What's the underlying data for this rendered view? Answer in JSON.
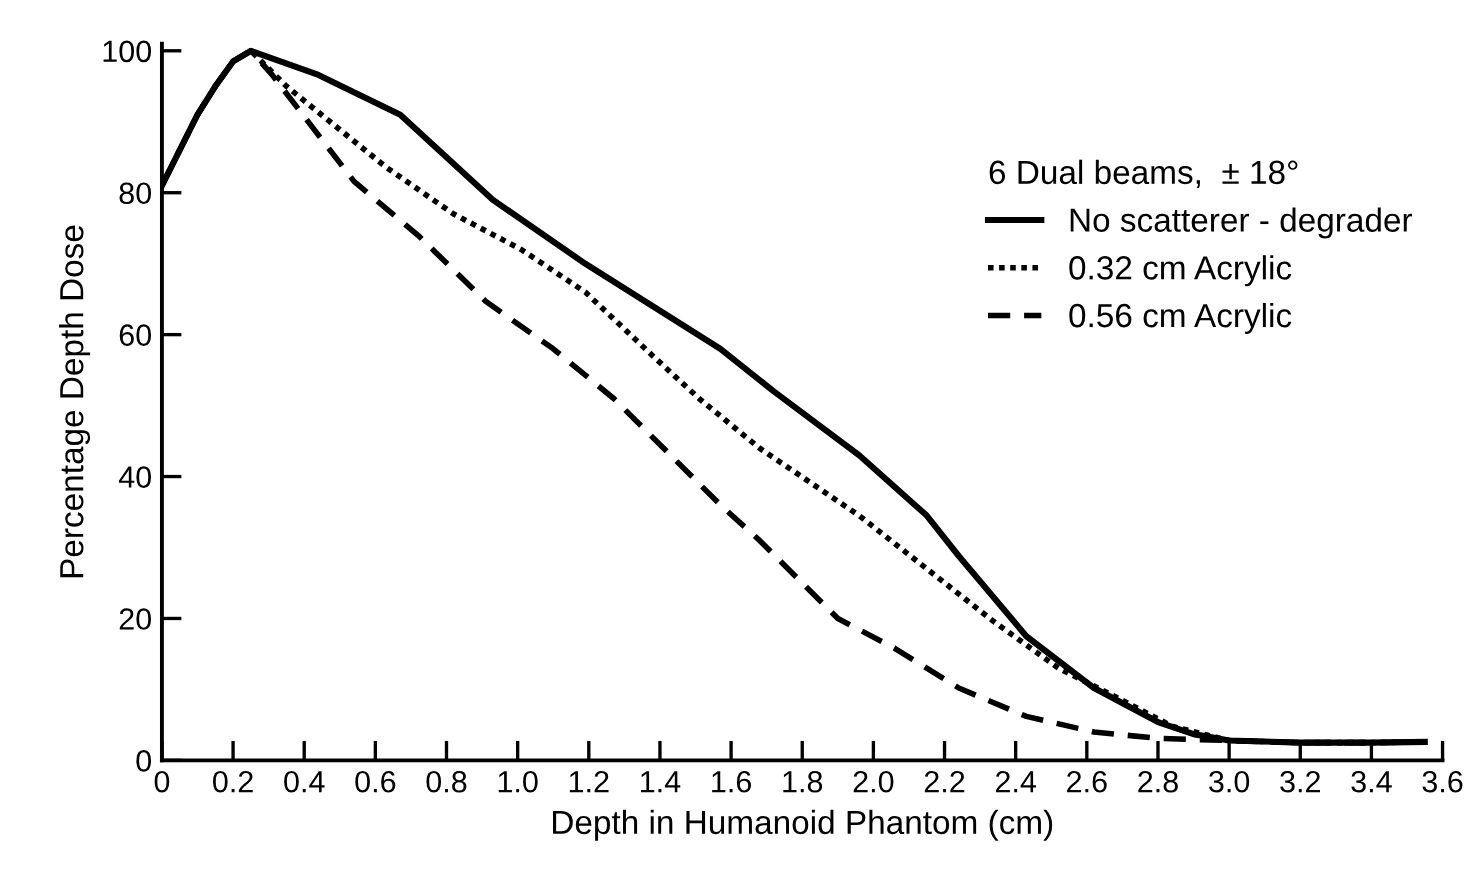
{
  "chart_data": {
    "type": "line",
    "xlabel": "Depth in Humanoid Phantom (cm)",
    "ylabel": "Percentage Depth Dose",
    "legend_title": "6 Dual beams,  ± 18°",
    "legend": "top right",
    "grid": false,
    "marker": "none",
    "xlim": [
      0,
      3.6
    ],
    "ylim": [
      0,
      101
    ],
    "xticks": [
      0,
      0.2,
      0.4,
      0.6,
      0.8,
      {
        "value": 1.0,
        "label": "1.0"
      },
      1.2,
      1.4,
      1.6,
      1.8,
      {
        "value": 2.0,
        "label": "2.0"
      },
      2.2,
      2.4,
      2.6,
      2.8,
      {
        "value": 3.0,
        "label": "3.0"
      },
      3.2,
      3.4,
      3.6
    ],
    "yticks": [
      0,
      20,
      40,
      60,
      80,
      100
    ],
    "series": [
      {
        "name": "No scatterer - degrader",
        "color": "#000000",
        "line_style": "solid",
        "x": [
          0,
          0.05,
          0.1,
          0.15,
          0.2,
          0.25,
          0.44,
          0.67,
          0.93,
          1.19,
          1.57,
          1.72,
          1.96,
          2.15,
          2.24,
          2.43,
          2.62,
          2.8,
          2.9,
          3.0,
          3.2,
          3.4,
          3.55
        ],
        "values": [
          81,
          86,
          91,
          95,
          98.5,
          100,
          96.6,
          91,
          79,
          70,
          58,
          52,
          43,
          34.5,
          28.8,
          17.5,
          10.2,
          5.4,
          3.7,
          2.8,
          2.5,
          2.5,
          2.6
        ]
      },
      {
        "name": "0.32 cm Acrylic",
        "color": "#000000",
        "line_style": "dotted",
        "x": [
          0,
          0.05,
          0.1,
          0.15,
          0.2,
          0.25,
          0.35,
          0.63,
          0.82,
          1.01,
          1.19,
          1.38,
          1.51,
          1.68,
          1.96,
          2.15,
          2.34,
          2.52,
          2.71,
          2.84,
          3.0,
          3.2,
          3.4,
          3.55
        ],
        "values": [
          81,
          86,
          91,
          95,
          98.5,
          100,
          95,
          83.6,
          77,
          72,
          66,
          57,
          51,
          44,
          34.5,
          27,
          19.5,
          13,
          8.2,
          4.8,
          2.8,
          2.5,
          2.5,
          2.6
        ]
      },
      {
        "name": "0.56 cm Acrylic",
        "color": "#000000",
        "line_style": "dashed",
        "x": [
          0,
          0.05,
          0.1,
          0.15,
          0.2,
          0.25,
          0.31,
          0.54,
          0.72,
          0.91,
          1.1,
          1.27,
          1.57,
          1.68,
          1.9,
          2.06,
          2.24,
          2.43,
          2.62,
          2.8,
          3.0,
          3.2,
          3.4,
          3.55
        ],
        "values": [
          81,
          86,
          91,
          95,
          98.5,
          100,
          96.6,
          81.6,
          74,
          64.7,
          58,
          51,
          36,
          31,
          20,
          15.8,
          10.2,
          6.2,
          4,
          3.1,
          2.8,
          2.5,
          2.5,
          2.6
        ]
      }
    ]
  }
}
